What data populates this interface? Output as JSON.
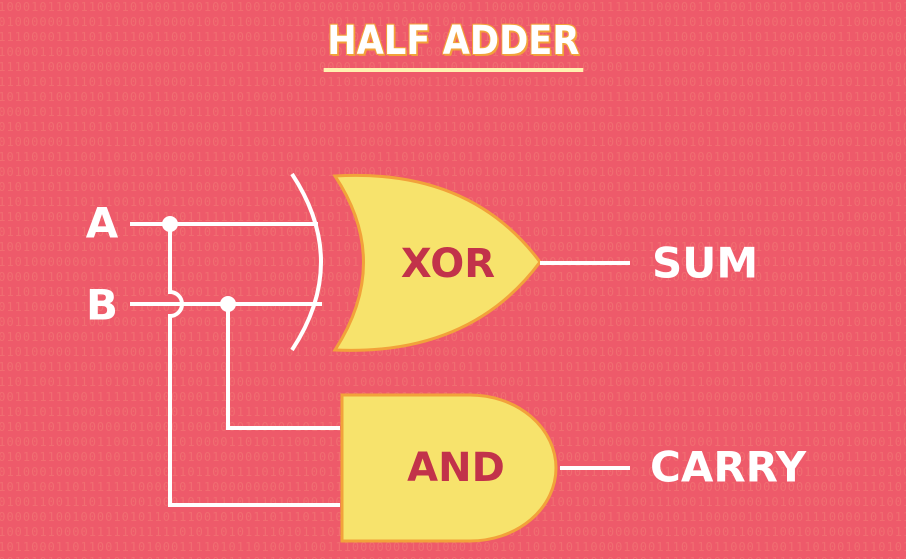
{
  "title": "HALF ADDER",
  "inputs": {
    "a": "A",
    "b": "B"
  },
  "gates": {
    "xor": "XOR",
    "and": "AND"
  },
  "outputs": {
    "sum": "SUM",
    "carry": "CARRY"
  },
  "colors": {
    "background": "#ee5a6a",
    "gate_fill": "#f7e36c",
    "gate_outline": "#f2a23a",
    "gate_text": "#c2324a",
    "wire": "#ffffff",
    "title_underline": "#fff2b0"
  }
}
